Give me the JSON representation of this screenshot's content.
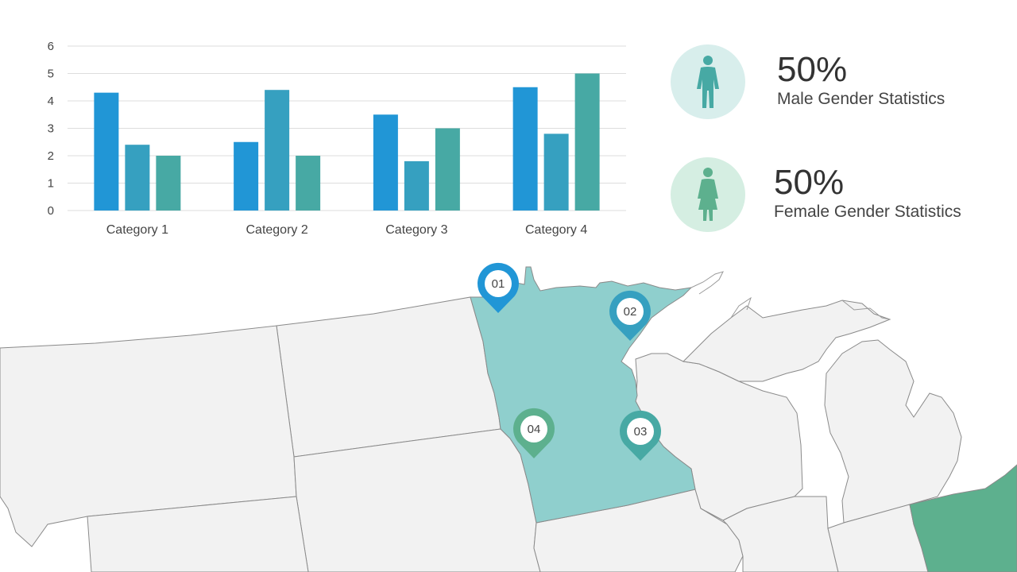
{
  "colors": {
    "series1": "#2196d6",
    "series2": "#36a0c0",
    "series3": "#47a9a4",
    "state_fill": "#f2f2f2",
    "state_stroke": "#8a8a8a",
    "highlight_teal": "#8fcfcd",
    "highlight_green": "#5db08e",
    "gridline": "#dddddd"
  },
  "chart_data": {
    "type": "bar",
    "categories": [
      "Category 1",
      "Category 2",
      "Category 3",
      "Category 4"
    ],
    "series": [
      {
        "values": [
          4.3,
          2.5,
          3.5,
          4.5
        ],
        "color": "#2196d6"
      },
      {
        "values": [
          2.4,
          4.4,
          1.8,
          2.8
        ],
        "color": "#36a0c0"
      },
      {
        "values": [
          2.0,
          2.0,
          3.0,
          5.0
        ],
        "color": "#47a9a4"
      }
    ],
    "ylim": [
      0,
      6
    ],
    "yticks": [
      "0",
      "1",
      "2",
      "3",
      "4",
      "5",
      "6"
    ],
    "grid": true,
    "title": "",
    "xlabel": "",
    "ylabel": ""
  },
  "stats": {
    "male": {
      "value": "50%",
      "label": "Male Gender Statistics",
      "icon": "male-person-icon",
      "icon_color": "#47a9a4"
    },
    "female": {
      "value": "50%",
      "label": "Female Gender Statistics",
      "icon": "female-person-icon",
      "icon_color": "#5db08e"
    }
  },
  "map": {
    "pins": [
      {
        "label": "01",
        "color": "#2196d6"
      },
      {
        "label": "02",
        "color": "#36a0c0"
      },
      {
        "label": "03",
        "color": "#47a9a4"
      },
      {
        "label": "04",
        "color": "#5db08e"
      }
    ]
  }
}
